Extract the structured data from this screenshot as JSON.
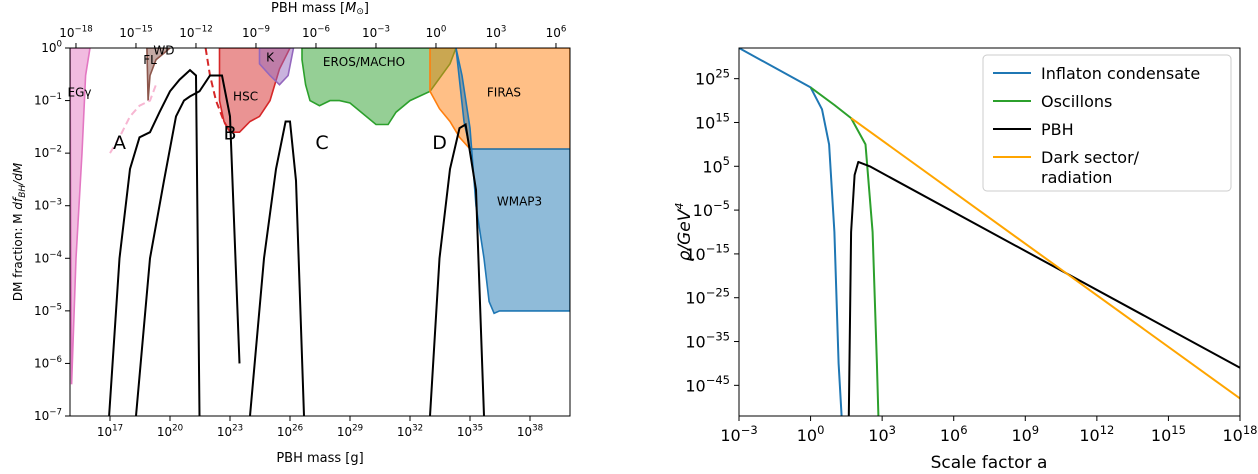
{
  "chart_data": [
    {
      "type": "area",
      "xlabel": "PBH mass [g]",
      "xlabel_top": "PBH mass [M_⊙]",
      "ylabel": "DM fraction: M df_BH/dM",
      "xscale": "log",
      "yscale": "log",
      "xlim": [
        1000000000000000.0,
        1e+40
      ],
      "ylim": [
        1e-07,
        1
      ],
      "xticks": [
        "10^17",
        "10^20",
        "10^23",
        "10^26",
        "10^29",
        "10^32",
        "10^35",
        "10^38"
      ],
      "xticks_top": [
        "10^-18",
        "10^-15",
        "10^-12",
        "10^-9",
        "10^-6",
        "10^-3",
        "10^0",
        "10^3",
        "10^6"
      ],
      "yticks": [
        "10^-7",
        "10^-6",
        "10^-5",
        "10^-4",
        "10^-3",
        "10^-2",
        "10^-1",
        "10^0"
      ],
      "constraint_labels": [
        "EGγ",
        "FL",
        "WD",
        "K",
        "HSC",
        "EROS/MACHO",
        "FIRAS",
        "WMAP3"
      ],
      "constraints": [
        {
          "name": "EGγ",
          "color": "#e377c2",
          "points": [
            [
              1200000000000000.0,
              4e-07
            ],
            [
              2000000000000000.0,
              0.0001
            ],
            [
              4000000000000000.0,
              0.01
            ],
            [
              6000000000000000.0,
              0.3
            ],
            [
              1e+16,
              1
            ],
            [
              1000000000000000.0,
              1
            ]
          ]
        },
        {
          "name": "WD",
          "color": "#8c564b",
          "points": [
            [
              8e+18,
              0.1
            ],
            [
              1e+19,
              0.3
            ],
            [
              2e+19,
              0.6
            ],
            [
              5e+19,
              0.8
            ],
            [
              1e+20,
              1
            ],
            [
              7e+18,
              1
            ]
          ]
        },
        {
          "name": "HSC",
          "color": "#d62728",
          "points": [
            [
              3e+22,
              0.1
            ],
            [
              5e+22,
              0.04
            ],
            [
              1e+23,
              0.025
            ],
            [
              3e+23,
              0.025
            ],
            [
              1e+24,
              0.04
            ],
            [
              3e+24,
              0.05
            ],
            [
              1e+25,
              0.1
            ],
            [
              3e+25,
              0.4
            ],
            [
              1e+26,
              1
            ],
            [
              3e+22,
              1
            ]
          ]
        },
        {
          "name": "K",
          "color": "#9467bd",
          "points": [
            [
              3e+24,
              0.5
            ],
            [
              1e+25,
              0.3
            ],
            [
              3e+25,
              0.2
            ],
            [
              8e+25,
              0.3
            ],
            [
              1.5e+26,
              1
            ],
            [
              3e+24,
              1
            ]
          ]
        },
        {
          "name": "EROS/MACHO",
          "color": "#2ca02c",
          "points": [
            [
              4e+26,
              0.6
            ],
            [
              6e+26,
              0.2
            ],
            [
              1e+27,
              0.1
            ],
            [
              3e+27,
              0.08
            ],
            [
              1e+28,
              0.1
            ],
            [
              3e+28,
              0.1
            ],
            [
              1e+29,
              0.09
            ],
            [
              2e+30,
              0.035
            ],
            [
              8e+30,
              0.035
            ],
            [
              2e+31,
              0.06
            ],
            [
              1e+32,
              0.1
            ],
            [
              1e+33,
              0.15
            ],
            [
              1e+34,
              0.5
            ],
            [
              2e+34,
              1
            ],
            [
              4e+26,
              1
            ]
          ]
        },
        {
          "name": "FIRAS",
          "color": "#ff7f0e",
          "points": [
            [
              1e+33,
              1
            ],
            [
              1e+33,
              0.15
            ],
            [
              3e+33,
              0.07
            ],
            [
              1e+34,
              0.04
            ],
            [
              3e+34,
              0.02
            ],
            [
              1e+35,
              0.012
            ],
            [
              1e+36,
              0.012
            ],
            [
              1e+40,
              0.012
            ],
            [
              1e+40,
              1
            ]
          ]
        },
        {
          "name": "WMAP3",
          "color": "#1f77b4",
          "points": [
            [
              2e+34,
              1
            ],
            [
              4e+34,
              0.3
            ],
            [
              1e+35,
              0.03
            ],
            [
              2e+35,
              0.001
            ],
            [
              5e+35,
              0.0001
            ],
            [
              9e+35,
              1.5e-05
            ],
            [
              1.6e+36,
              9e-06
            ],
            [
              3e+36,
              1e-05
            ],
            [
              1e+40,
              1e-05
            ],
            [
              1e+40,
              0.012
            ],
            [
              1e+36,
              0.012
            ],
            [
              1e+35,
              0.012
            ],
            [
              5e+34,
              0.04
            ]
          ]
        },
        {
          "name": "FL",
          "color": "#f7b6d2",
          "dashed": true,
          "points": [
            [
              1e+17,
              0.01
            ],
            [
              3e+17,
              0.02
            ],
            [
              1e+18,
              0.05
            ],
            [
              3e+18,
              0.08
            ],
            [
              1e+19,
              0.1
            ],
            [
              2e+19,
              0.2
            ]
          ]
        },
        {
          "name": "HSC-dashed",
          "color": "#d62728",
          "dashed": true,
          "points": [
            [
              6e+21,
              1
            ],
            [
              1e+22,
              0.3
            ],
            [
              2e+22,
              0.1
            ],
            [
              5e+22,
              0.04
            ],
            [
              1e+23,
              0.025
            ]
          ]
        }
      ],
      "mass_functions": [
        {
          "label": "A",
          "points": [
            [
              9e+16,
              1e-07
            ],
            [
              3e+17,
              0.0001
            ],
            [
              1e+18,
              0.005
            ],
            [
              3e+18,
              0.02
            ],
            [
              1e+19,
              0.025
            ],
            [
              3e+19,
              0.06
            ],
            [
              1e+20,
              0.15
            ],
            [
              3e+20,
              0.25
            ],
            [
              1e+21,
              0.38
            ],
            [
              2e+21,
              0.3
            ],
            [
              3e+21,
              1e-07
            ]
          ]
        },
        {
          "label": "B",
          "points": [
            [
              2e+18,
              1e-07
            ],
            [
              1e+19,
              0.0001
            ],
            [
              5e+19,
              0.003
            ],
            [
              2e+20,
              0.05
            ],
            [
              5e+20,
              0.1
            ],
            [
              1e+21,
              0.12
            ],
            [
              3e+21,
              0.15
            ],
            [
              1e+22,
              0.3
            ],
            [
              4e+22,
              0.3
            ],
            [
              1e+23,
              0.05
            ],
            [
              3e+23,
              1e-06
            ]
          ]
        },
        {
          "label": "C",
          "points": [
            [
              1e+24,
              1e-07
            ],
            [
              5e+24,
              0.0001
            ],
            [
              2e+25,
              0.005
            ],
            [
              6e+25,
              0.04
            ],
            [
              1e+26,
              0.04
            ],
            [
              2e+26,
              0.003
            ],
            [
              5e+26,
              1e-07
            ]
          ]
        },
        {
          "label": "D",
          "points": [
            [
              1e+33,
              1e-07
            ],
            [
              3e+33,
              0.0001
            ],
            [
              1e+34,
              0.005
            ],
            [
              3e+34,
              0.03
            ],
            [
              6e+34,
              0.035
            ],
            [
              2e+35,
              0.002
            ],
            [
              5e+35,
              1e-07
            ]
          ]
        }
      ]
    },
    {
      "type": "line",
      "xlabel": "Scale factor a",
      "ylabel": "ρ/GeV^4",
      "xscale": "log",
      "yscale": "log",
      "xlim": [
        0.001,
        1e+18
      ],
      "ylim": [
        1e-52,
        1e+32
      ],
      "xticks": [
        "10^-3",
        "10^0",
        "10^3",
        "10^6",
        "10^9",
        "10^12",
        "10^15",
        "10^18"
      ],
      "yticks": [
        "10^-45",
        "10^-35",
        "10^-25",
        "10^-15",
        "10^-5",
        "10^5",
        "10^15",
        "10^25"
      ],
      "legend": [
        "Inflaton condensate",
        "Oscillons",
        "PBH",
        "Dark sector/ radiation"
      ],
      "legend_position": "top-right",
      "series": [
        {
          "name": "Inflaton condensate",
          "color": "#1f77b4",
          "points": [
            [
              0.001,
              1e+32
            ],
            [
              1,
              1e+23
            ],
            [
              3,
              1e+18
            ],
            [
              6,
              10000000000.0
            ],
            [
              10,
              1e-10
            ],
            [
              15,
              1e-40
            ],
            [
              20,
              1e-52
            ]
          ]
        },
        {
          "name": "Oscillons",
          "color": "#2ca02c",
          "points": [
            [
              1,
              1e+23
            ],
            [
              10,
              1e+19
            ],
            [
              50,
              1e+16
            ],
            [
              200,
              10000000000.0
            ],
            [
              400,
              1e-10
            ],
            [
              600,
              1e-40
            ],
            [
              700,
              1e-52
            ]
          ]
        },
        {
          "name": "PBH",
          "color": "#000000",
          "points": [
            [
              40,
              1e-52
            ],
            [
              50,
              1e-10
            ],
            [
              70,
              1000.0
            ],
            [
              100,
              1000000.0
            ],
            [
              300,
              100000.0
            ],
            [
              1e+18,
              1e-41
            ]
          ]
        },
        {
          "name": "Dark sector/ radiation",
          "color": "#ffa500",
          "points": [
            [
              50,
              1e+16
            ],
            [
              1e+18,
              1e-48
            ]
          ]
        }
      ]
    }
  ]
}
